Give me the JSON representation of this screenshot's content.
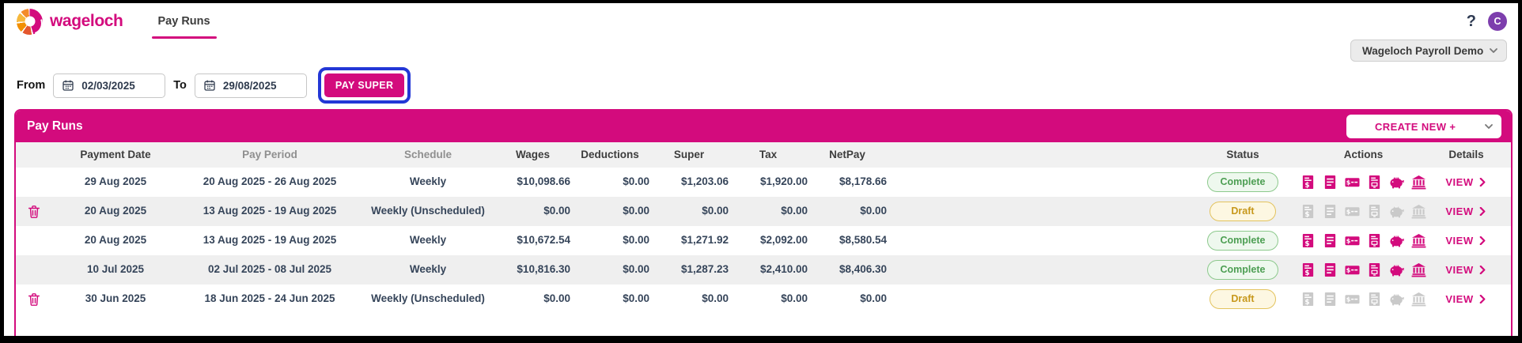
{
  "topnav": {
    "brand": "wageloch",
    "tab": "Pay Runs",
    "help": "?",
    "avatar": "C"
  },
  "company": {
    "selected": "Wageloch Payroll Demo"
  },
  "filters": {
    "from_label": "From",
    "from_value": "02/03/2025",
    "to_label": "To",
    "to_value": "29/08/2025",
    "pay_super": "PAY SUPER"
  },
  "panel": {
    "title": "Pay Runs",
    "create_new": "CREATE NEW +"
  },
  "table": {
    "columns": {
      "payment_date": "Payment Date",
      "pay_period": "Pay Period",
      "schedule": "Schedule",
      "wages": "Wages",
      "deductions": "Deductions",
      "super": "Super",
      "tax": "Tax",
      "netpay": "NetPay",
      "status": "Status",
      "actions": "Actions",
      "details": "Details"
    },
    "action_icons": [
      "invoice-icon",
      "report-icon",
      "cheque-icon",
      "payslip-icon",
      "piggy-bank-icon",
      "bank-icon"
    ],
    "view_label": "VIEW",
    "rows": [
      {
        "deletable": false,
        "payment_date": "29 Aug 2025",
        "pay_period": "20 Aug 2025 - 26 Aug 2025",
        "schedule": "Weekly",
        "wages": "$10,098.66",
        "deductions": "$0.00",
        "super": "$1,203.06",
        "tax": "$1,920.00",
        "netpay": "$8,178.66",
        "status": "Complete"
      },
      {
        "deletable": true,
        "payment_date": "20 Aug 2025",
        "pay_period": "13 Aug 2025 - 19 Aug 2025",
        "schedule": "Weekly (Unscheduled)",
        "wages": "$0.00",
        "deductions": "$0.00",
        "super": "$0.00",
        "tax": "$0.00",
        "netpay": "$0.00",
        "status": "Draft"
      },
      {
        "deletable": false,
        "payment_date": "20 Aug 2025",
        "pay_period": "13 Aug 2025 - 19 Aug 2025",
        "schedule": "Weekly",
        "wages": "$10,672.54",
        "deductions": "$0.00",
        "super": "$1,271.92",
        "tax": "$2,092.00",
        "netpay": "$8,580.54",
        "status": "Complete"
      },
      {
        "deletable": false,
        "payment_date": "10 Jul 2025",
        "pay_period": "02 Jul 2025 - 08 Jul 2025",
        "schedule": "Weekly",
        "wages": "$10,816.30",
        "deductions": "$0.00",
        "super": "$1,287.23",
        "tax": "$2,410.00",
        "netpay": "$8,406.30",
        "status": "Complete"
      },
      {
        "deletable": true,
        "payment_date": "30 Jun 2025",
        "pay_period": "18 Jun 2025 - 24 Jun 2025",
        "schedule": "Weekly (Unscheduled)",
        "wages": "$0.00",
        "deductions": "$0.00",
        "super": "$0.00",
        "tax": "$0.00",
        "netpay": "$0.00",
        "status": "Draft"
      }
    ]
  },
  "colors": {
    "brand_magenta": "#d30b7d",
    "annotation_blue": "#2337d6",
    "avatar_purple": "#7d3ead",
    "complete_green": "#4c9e52",
    "draft_gold": "#c7981c"
  }
}
